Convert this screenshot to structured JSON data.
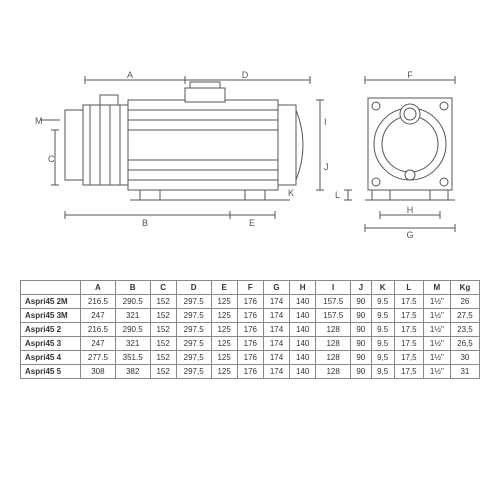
{
  "diagram": {
    "labels": {
      "A": "A",
      "B": "B",
      "C": "C",
      "D": "D",
      "E": "E",
      "F": "F",
      "G": "G",
      "H": "H",
      "I": "I",
      "J": "J",
      "K": "K",
      "L": "L",
      "M": "M"
    },
    "stroke": "#555555",
    "fill": "#ffffff"
  },
  "table": {
    "columns": [
      "",
      "A",
      "B",
      "C",
      "D",
      "E",
      "F",
      "G",
      "H",
      "I",
      "J",
      "K",
      "L",
      "M",
      "Kg"
    ],
    "rows": [
      [
        "Aspri45 2M",
        "216.5",
        "290.5",
        "152",
        "297.5",
        "125",
        "176",
        "174",
        "140",
        "157.5",
        "90",
        "9.5",
        "17.5",
        "1½\"",
        "26"
      ],
      [
        "Aspri45 3M",
        "247",
        "321",
        "152",
        "297.5",
        "125",
        "176",
        "174",
        "140",
        "157.5",
        "90",
        "9.5",
        "17.5",
        "1½\"",
        "27,5"
      ],
      [
        "Aspri45 2",
        "216.5",
        "290.5",
        "152",
        "297.5",
        "125",
        "176",
        "174",
        "140",
        "128",
        "90",
        "9.5",
        "17.5",
        "1½\"",
        "23,5"
      ],
      [
        "Aspri45 3",
        "247",
        "321",
        "152",
        "297.5",
        "125",
        "176",
        "174",
        "140",
        "128",
        "90",
        "9.5",
        "17.5",
        "1½\"",
        "26,5"
      ],
      [
        "Aspri45 4",
        "277.5",
        "351.5",
        "152",
        "297,5",
        "125",
        "176",
        "174",
        "140",
        "128",
        "90",
        "9,5",
        "17,5",
        "1½\"",
        "30"
      ],
      [
        "Aspri45 5",
        "308",
        "382",
        "152",
        "297,5",
        "125",
        "176",
        "174",
        "140",
        "128",
        "90",
        "9,5",
        "17,5",
        "1½\"",
        "31"
      ]
    ],
    "border_color": "#888888",
    "font_size": 8
  }
}
